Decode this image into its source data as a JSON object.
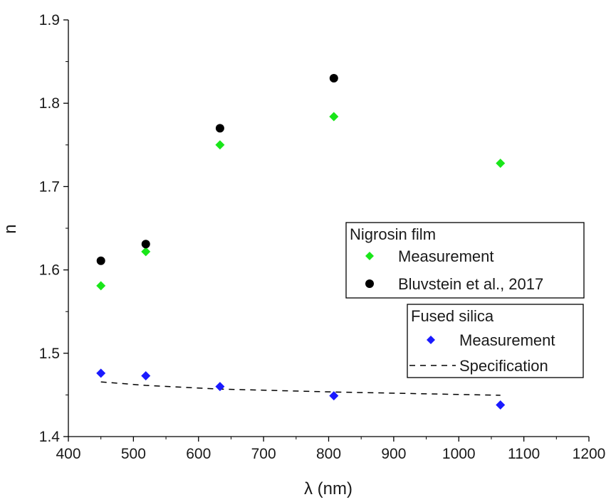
{
  "chart_data": {
    "type": "scatter",
    "xlabel": "λ (nm)",
    "ylabel": "n",
    "xlim": [
      400,
      1200
    ],
    "ylim": [
      1.4,
      1.9
    ],
    "xticks": [
      "400",
      "500",
      "600",
      "700",
      "800",
      "900",
      "1000",
      "1100",
      "1200"
    ],
    "yticks": [
      "1.4",
      "1.5",
      "1.6",
      "1.7",
      "1.8",
      "1.9"
    ],
    "grid": false,
    "legends": [
      {
        "title": "Nigrosin film",
        "entries": [
          "Measurement",
          "Bluvstein et al., 2017"
        ]
      },
      {
        "title": "Fused silica",
        "entries": [
          "Measurement",
          "Specification"
        ]
      }
    ],
    "series": [
      {
        "name": "Measurement",
        "group": "Nigrosin film",
        "marker": "diamond",
        "color": "#19e619",
        "points": [
          [
            450,
            1.581
          ],
          [
            519,
            1.622
          ],
          [
            633,
            1.75
          ],
          [
            808,
            1.784
          ],
          [
            1064,
            1.728
          ]
        ]
      },
      {
        "name": "Bluvstein et al., 2017",
        "group": "Nigrosin film",
        "marker": "circle",
        "color": "#000000",
        "points": [
          [
            450,
            1.611
          ],
          [
            519,
            1.631
          ],
          [
            633,
            1.77
          ],
          [
            808,
            1.83
          ]
        ]
      },
      {
        "name": "Measurement",
        "group": "Fused silica",
        "marker": "diamond",
        "color": "#1a1aff",
        "points": [
          [
            450,
            1.476
          ],
          [
            519,
            1.473
          ],
          [
            633,
            1.46
          ],
          [
            808,
            1.449
          ],
          [
            1064,
            1.438
          ]
        ]
      },
      {
        "name": "Specification",
        "group": "Fused silica",
        "marker": "dashed-line",
        "color": "#000000",
        "points": [
          [
            450,
            1.4656
          ],
          [
            519,
            1.4614
          ],
          [
            633,
            1.457
          ],
          [
            808,
            1.4535
          ],
          [
            1064,
            1.4496
          ]
        ]
      }
    ]
  }
}
